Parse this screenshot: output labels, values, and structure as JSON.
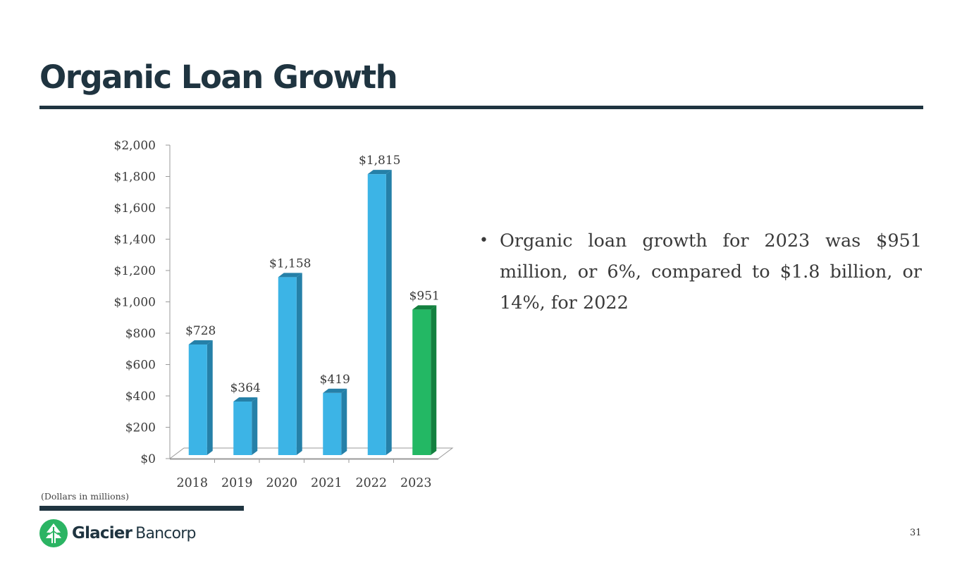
{
  "page": {
    "title": "Organic Loan Growth",
    "footnote": "(Dollars in millions)",
    "page_number": "31",
    "bullet": "Organic loan growth for 2023 was $951 million, or 6%,  compared to $1.8 billion, or 14%, for 2022",
    "logo": {
      "word1": "Glacier",
      "word2": "Bancorp",
      "icon": "glacier-mountain-icon"
    }
  },
  "colors": {
    "title": "#1f3440",
    "rule": "#1f3440",
    "bar_blue": "#3cb4e6",
    "bar_blue_side": "#2580a8",
    "bar_green": "#23b864",
    "bar_green_side": "#13803f",
    "logo_green": "#2bb463"
  },
  "chart_data": {
    "type": "bar",
    "title": "",
    "xlabel": "",
    "ylabel": "",
    "categories": [
      "2018",
      "2019",
      "2020",
      "2021",
      "2022",
      "2023"
    ],
    "values": [
      728,
      364,
      1158,
      419,
      1815,
      951
    ],
    "data_labels": [
      "$728",
      "$364",
      "$1,158",
      "$419",
      "$1,815",
      "$951"
    ],
    "highlight_index": 5,
    "ylim": [
      0,
      2000
    ],
    "yticks": [
      0,
      200,
      400,
      600,
      800,
      1000,
      1200,
      1400,
      1600,
      1800,
      2000
    ],
    "ytick_labels": [
      "$0",
      "$200",
      "$400",
      "$600",
      "$800",
      "$1,000",
      "$1,200",
      "$1,400",
      "$1,600",
      "$1,800",
      "$2,000"
    ],
    "grid": false,
    "legend": "none"
  }
}
